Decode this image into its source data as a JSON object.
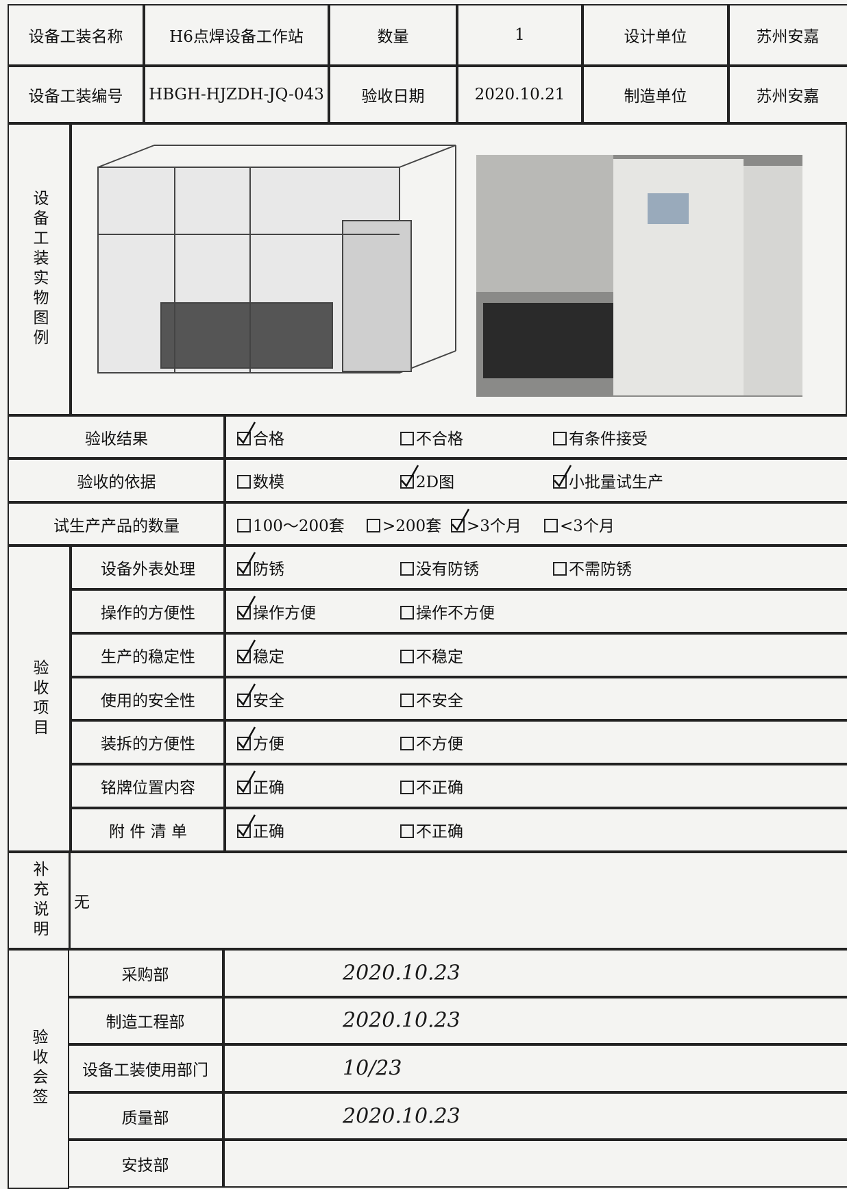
{
  "header": {
    "rows": [
      [
        "设备工装名称",
        "H6点焊设备工作站",
        "数量",
        "1",
        "设计单位",
        "苏州安嘉"
      ],
      [
        "设备工装编号",
        "HBGH-HJZDH-JQ-043",
        "验收日期",
        "2020.10.21",
        "制造单位",
        "苏州安嘉"
      ]
    ]
  },
  "photos": {
    "label": "设备工装实物图例"
  },
  "checks": {
    "rows": [
      {
        "label": "验收结果",
        "options": [
          {
            "text": "合格",
            "checked": true
          },
          {
            "text": "不合格",
            "checked": false
          },
          {
            "text": "有条件接受",
            "checked": false
          }
        ]
      },
      {
        "label": "验收的依据",
        "options": [
          {
            "text": "数模",
            "checked": false
          },
          {
            "text": "2D图",
            "checked": true
          },
          {
            "text": "小批量试生产",
            "checked": true
          }
        ]
      },
      {
        "label": "试生产产品的数量",
        "options": [
          {
            "text": "100～200套",
            "checked": false
          },
          {
            "text": ">200套",
            "checked": false
          },
          {
            "text": ">3个月",
            "checked": true
          },
          {
            "text": "<3个月",
            "checked": false
          }
        ]
      }
    ]
  },
  "items": {
    "label": "验收项目",
    "rows": [
      {
        "label": "设备外表处理",
        "options": [
          {
            "text": "防锈",
            "checked": true
          },
          {
            "text": "没有防锈",
            "checked": false
          },
          {
            "text": "不需防锈",
            "checked": false
          }
        ]
      },
      {
        "label": "操作的方便性",
        "options": [
          {
            "text": "操作方便",
            "checked": true
          },
          {
            "text": "操作不方便",
            "checked": false
          }
        ]
      },
      {
        "label": "生产的稳定性",
        "options": [
          {
            "text": "稳定",
            "checked": true
          },
          {
            "text": "不稳定",
            "checked": false
          }
        ]
      },
      {
        "label": "使用的安全性",
        "options": [
          {
            "text": "安全",
            "checked": true
          },
          {
            "text": "不安全",
            "checked": false
          }
        ]
      },
      {
        "label": "装拆的方便性",
        "options": [
          {
            "text": "方便",
            "checked": true
          },
          {
            "text": "不方便",
            "checked": false
          }
        ]
      },
      {
        "label": "铭牌位置内容",
        "options": [
          {
            "text": "正确",
            "checked": true
          },
          {
            "text": "不正确",
            "checked": false
          }
        ]
      },
      {
        "label": "附 件 清 单",
        "options": [
          {
            "text": "正确",
            "checked": true
          },
          {
            "text": "不正确",
            "checked": false
          }
        ]
      }
    ]
  },
  "notes": {
    "label": "补充说明",
    "text": "无"
  },
  "signoff": {
    "label": "验收会签",
    "rows": [
      {
        "dept": "采购部",
        "signature": "2020.10.23"
      },
      {
        "dept": "制造工程部",
        "signature": "2020.10.23"
      },
      {
        "dept": "设备工装使用部门",
        "signature": "10/23"
      },
      {
        "dept": "质量部",
        "signature": "2020.10.23"
      },
      {
        "dept": "安技部"
      }
    ]
  }
}
